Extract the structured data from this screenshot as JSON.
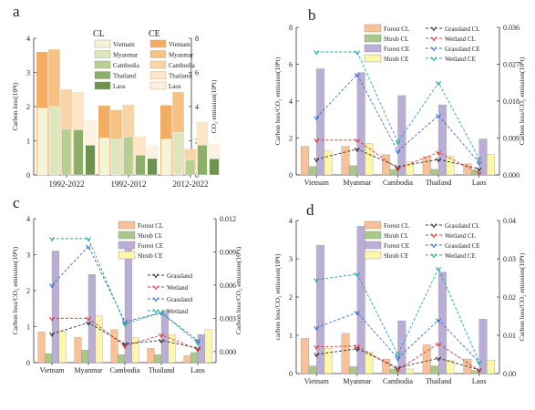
{
  "chart_data": [
    {
      "panel": "a",
      "type": "bar",
      "ylabel": "Carbon loss(10⁸t)",
      "y2label": "CO₂ emission(10⁸t)",
      "ylim": [
        0,
        4
      ],
      "y2lim": [
        0,
        8
      ],
      "yticks": [
        "0",
        "1",
        "2",
        "3",
        "4"
      ],
      "y2ticks": [
        "0",
        "2",
        "4",
        "6",
        "8"
      ],
      "groups": [
        "1992-2022",
        "1992-2012",
        "2012-2022"
      ],
      "countries": [
        "Vietnam",
        "Myanmar",
        "Cambodia",
        "Thailand",
        "Laos"
      ],
      "legend_cl_title": "CL",
      "legend_ce_title": "CE",
      "series": [
        {
          "name": "CL",
          "colors": [
            "#f4f5d6",
            "#dce6b8",
            "#b7cf92",
            "#8caf6a",
            "#6c934f"
          ],
          "values": [
            [
              1.95,
              2.0,
              1.35,
              1.32,
              0.87
            ],
            [
              1.08,
              1.05,
              1.12,
              0.58,
              0.48
            ],
            [
              1.05,
              1.25,
              0.43,
              0.87,
              0.47
            ]
          ]
        },
        {
          "name": "CE",
          "colors": [
            "#f3ad63",
            "#f6c284",
            "#f8d4a6",
            "#fbe6c8",
            "#fdf1e2"
          ],
          "values": [
            [
              7.2,
              7.35,
              5.0,
              4.85,
              3.2
            ],
            [
              4.05,
              3.8,
              4.1,
              2.25,
              1.75
            ],
            [
              4.08,
              4.85,
              1.52,
              3.1,
              1.82
            ]
          ]
        }
      ]
    },
    {
      "panel": "b",
      "type": "bar",
      "ylabel": "Carbon loss/CO₂ emission(10⁸t)",
      "y2label": "Carbon loss/CO₂ emission(10⁸t)",
      "ylim": [
        0,
        8
      ],
      "y2lim": [
        0,
        0.036
      ],
      "yticks": [
        "0",
        "2",
        "4",
        "6",
        "8"
      ],
      "y2ticks": [
        "0.000",
        "0.009",
        "0.018",
        "0.027",
        "0.036"
      ],
      "categories": [
        "Vietnam",
        "Myanmar",
        "Cambodia",
        "Thailand",
        "Laos"
      ],
      "bar_series": [
        {
          "name": "Forest CL",
          "color": "#f7c29a",
          "values": [
            1.55,
            1.55,
            1.1,
            1.0,
            0.6
          ]
        },
        {
          "name": "Shrub CL",
          "color": "#a9c98c",
          "values": [
            0.45,
            0.5,
            0.3,
            0.3,
            0.25
          ]
        },
        {
          "name": "Forest CE",
          "color": "#bbaed6",
          "values": [
            5.75,
            5.55,
            4.3,
            3.8,
            1.95
          ]
        },
        {
          "name": "Shrub CE",
          "color": "#fdf7a8",
          "values": [
            1.3,
            1.7,
            0.7,
            1.0,
            1.1
          ]
        }
      ],
      "line_series": [
        {
          "name": "Grassland CL",
          "color": "#333333",
          "values": [
            0.0038,
            0.0063,
            0.002,
            0.0038,
            0.0015
          ]
        },
        {
          "name": "Wetland CL",
          "color": "#e03b3b",
          "values": [
            0.0085,
            0.0085,
            0.0015,
            0.0055,
            0.0005
          ]
        },
        {
          "name": "Grassland CE",
          "color": "#3a6fd1",
          "values": [
            0.014,
            0.0245,
            0.0058,
            0.0145,
            0.003
          ]
        },
        {
          "name": "Wetland CE",
          "color": "#22a9a0",
          "values": [
            0.03,
            0.03,
            0.008,
            0.0225,
            0.004
          ]
        }
      ]
    },
    {
      "panel": "c",
      "type": "bar",
      "ylabel": "Carbon loss/CO₂ emission(10⁸t)",
      "y2label": "Carbon loss/CO₂ emission(10⁸t)",
      "ylim": [
        0,
        4
      ],
      "y2lim": [
        -0.001,
        0.012
      ],
      "yticks": [
        "0",
        "1",
        "2",
        "3",
        "4"
      ],
      "y2ticks": [
        "0.000",
        "0.003",
        "0.006",
        "0.009",
        "0.012"
      ],
      "categories": [
        "Vietnam",
        "Myanmar",
        "Cambodia",
        "Thailand",
        "Laos"
      ],
      "bar_series": [
        {
          "name": "Forest CL",
          "color": "#f7c29a",
          "values": [
            0.85,
            0.7,
            0.92,
            0.4,
            0.2
          ]
        },
        {
          "name": "Shrub CL",
          "color": "#a9c98c",
          "values": [
            0.25,
            0.35,
            0.22,
            0.22,
            0.28
          ]
        },
        {
          "name": "Forest CE",
          "color": "#bbaed6",
          "values": [
            3.1,
            2.45,
            3.35,
            1.45,
            0.78
          ]
        },
        {
          "name": "Shrub CE",
          "color": "#fdf7a8",
          "values": [
            0.88,
            1.3,
            0.7,
            0.78,
            0.92
          ]
        }
      ],
      "line_series": [
        {
          "name": "Grassland",
          "color": "#333333",
          "values": [
            0.0016,
            0.0026,
            0.0007,
            0.001,
            0.0003
          ]
        },
        {
          "name": "Wetland",
          "color": "#e03b3b",
          "values": [
            0.003,
            0.003,
            0.0005,
            0.0015,
            0.0002
          ]
        },
        {
          "name": "Grassland",
          "color": "#3a6fd1",
          "values": [
            0.006,
            0.0095,
            0.0027,
            0.0035,
            0.001
          ]
        },
        {
          "name": "Wetland",
          "color": "#22a9a0",
          "values": [
            0.0102,
            0.0102,
            0.0025,
            0.0035,
            0.0008
          ]
        }
      ]
    },
    {
      "panel": "d",
      "type": "bar",
      "ylabel": "carbon loss/CO₂ emission(10⁸t)",
      "y2label": "Carbon loss/CO₂ emission(10⁸t)",
      "ylim": [
        0,
        4
      ],
      "y2lim": [
        0,
        0.04
      ],
      "yticks": [
        "0",
        "1",
        "2",
        "3",
        "4"
      ],
      "y2ticks": [
        "0.00",
        "0.01",
        "0.02",
        "0.03",
        "0.04"
      ],
      "categories": [
        "Vietnam",
        "Myanmar",
        "Cambodia",
        "Thailand",
        "Laos"
      ],
      "bar_series": [
        {
          "name": "Forest CL",
          "color": "#f7c29a",
          "values": [
            0.92,
            1.05,
            0.38,
            0.75,
            0.38
          ]
        },
        {
          "name": "Shrub CL",
          "color": "#a9c98c",
          "values": [
            0.2,
            0.18,
            0.12,
            0.2,
            0.08
          ]
        },
        {
          "name": "Forest CE",
          "color": "#bbaed6",
          "values": [
            3.35,
            3.85,
            1.38,
            2.65,
            1.42
          ]
        },
        {
          "name": "Shrub CE",
          "color": "#fdf7a8",
          "values": [
            0.65,
            0.55,
            0.12,
            0.35,
            0.35
          ]
        }
      ],
      "line_series": [
        {
          "name": "Grassland CL",
          "color": "#333333",
          "values": [
            0.005,
            0.0065,
            0.0015,
            0.004,
            0.001
          ]
        },
        {
          "name": "Wetland CL",
          "color": "#e03b3b",
          "values": [
            0.007,
            0.0072,
            0.001,
            0.0078,
            0.0008
          ]
        },
        {
          "name": "Grassland CE",
          "color": "#3a6fd1",
          "values": [
            0.012,
            0.016,
            0.004,
            0.014,
            0.003
          ]
        },
        {
          "name": "Wetland CE",
          "color": "#22a9a0",
          "values": [
            0.0245,
            0.026,
            0.005,
            0.0275,
            0.003
          ]
        }
      ]
    }
  ]
}
